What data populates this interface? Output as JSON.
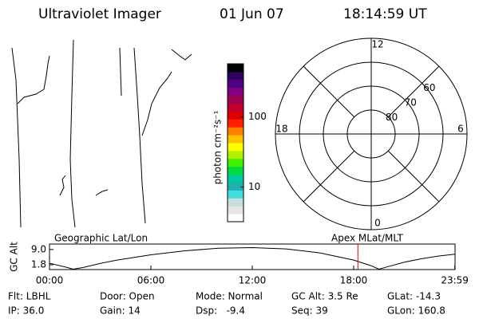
{
  "header": {
    "instrument": "Ultraviolet Imager",
    "date": "01 Jun 07",
    "time": "18:14:59 UT"
  },
  "colorbar": {
    "label": "photon cm⁻²s⁻¹",
    "log": true,
    "clim": [
      3.2,
      575
    ],
    "ticks": [
      10,
      100
    ],
    "colors": [
      "#ffffff",
      "#e6e6e6",
      "#c8dcdc",
      "#40e0e0",
      "#20b0b0",
      "#00c8a0",
      "#00dc40",
      "#40f000",
      "#b0f000",
      "#ffff00",
      "#ffc000",
      "#ff8000",
      "#ff2000",
      "#e00000",
      "#c00030",
      "#a00050",
      "#800080",
      "#500080",
      "#300060",
      "#000000"
    ]
  },
  "polar": {
    "rlim": [
      90,
      50
    ],
    "lat_ticks": [
      80,
      70,
      60
    ],
    "mlt_ticks": [
      0,
      6,
      12,
      18
    ]
  },
  "altitude": {
    "ylabel": "GC Alt",
    "left_title": "Geographic Lat/Lon",
    "right_title": "Apex MLat/MLT",
    "xlim": [
      0,
      24
    ],
    "ylim": [
      -0.5,
      11.6
    ],
    "xticks": [
      {
        "value": 0,
        "label": "00:00"
      },
      {
        "value": 6,
        "label": "06:00"
      },
      {
        "value": 12,
        "label": "12:00"
      },
      {
        "value": 18,
        "label": "18:00"
      },
      {
        "value": 23.983,
        "label": "23:59"
      }
    ],
    "yticks": [
      1.8,
      {
        "value": 9,
        "label": "9.0"
      }
    ],
    "x": [
      0,
      1,
      1.4,
      2,
      3,
      4,
      6,
      8,
      10,
      12,
      14,
      16,
      18,
      19,
      19.5,
      20,
      21,
      22,
      23,
      23.98
    ],
    "values": [
      2.5,
      0.6,
      -0.3,
      0.5,
      2.4,
      4.0,
      6.5,
      8.4,
      9.6,
      9.9,
      9.3,
      7.4,
      4.0,
      1.4,
      -0.3,
      0.8,
      3.0,
      4.6,
      5.9,
      6.8
    ],
    "color": "#000000",
    "marker": 18.25,
    "marker_color": "#e00000"
  },
  "footer": [
    [
      "Flt: LBHL",
      "IP: 36.0"
    ],
    [
      "Door: Open",
      "Gain: 14"
    ],
    [
      "Mode: Normal",
      "Dsp:   -9.4"
    ],
    [
      "GC Alt: 3.5 Re",
      "Seq: 39"
    ],
    [
      "GLat: -14.3",
      "GLon: 160.8"
    ]
  ]
}
